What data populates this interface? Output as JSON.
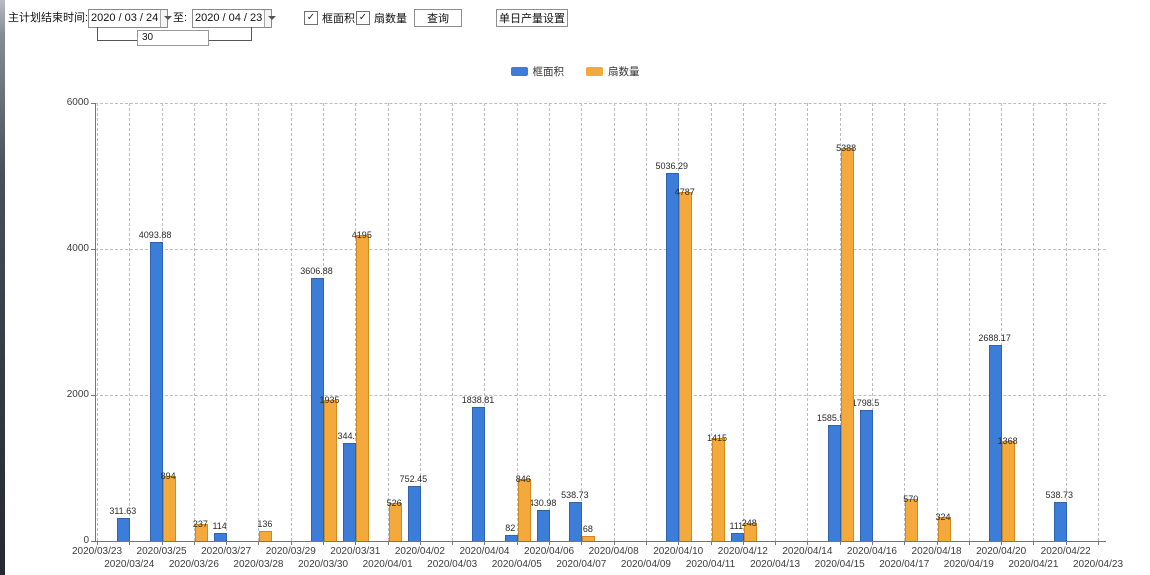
{
  "toolbar": {
    "label_plan_end": "主计划结束时间:",
    "date_from": "2020 / 03 / 24",
    "to_label": "至:",
    "date_to": "2020 / 04 / 23",
    "interval_days": "30",
    "checkbox_frame_area": "框面积",
    "checkbox_sash_count": "扇数量",
    "checkbox_frame_area_checked": "✓",
    "checkbox_sash_count_checked": "✓",
    "query_button": "查询",
    "daily_output_button": "单日产量设置"
  },
  "legend": [
    {
      "label": "框面积",
      "color": "#3c7dda"
    },
    {
      "label": "扇数量",
      "color": "#f4a93d"
    }
  ],
  "chart_data": {
    "type": "bar",
    "title": "",
    "xlabel": "",
    "ylabel": "",
    "ylim": [
      0,
      6000
    ],
    "yticks": [
      0,
      2000,
      4000,
      6000
    ],
    "grid": true,
    "legend_position": "top",
    "categories": [
      "2020/03/23",
      "2020/03/24",
      "2020/03/25",
      "2020/03/26",
      "2020/03/27",
      "2020/03/28",
      "2020/03/29",
      "2020/03/30",
      "2020/03/31",
      "2020/04/01",
      "2020/04/02",
      "2020/04/03",
      "2020/04/04",
      "2020/04/05",
      "2020/04/06",
      "2020/04/07",
      "2020/04/08",
      "2020/04/09",
      "2020/04/10",
      "2020/04/11",
      "2020/04/12",
      "2020/04/13",
      "2020/04/14",
      "2020/04/15",
      "2020/04/16",
      "2020/04/17",
      "2020/04/18",
      "2020/04/19",
      "2020/04/20",
      "2020/04/21",
      "2020/04/22",
      "2020/04/23"
    ],
    "series": [
      {
        "name": "框面积",
        "color": "#3c7dda",
        "values": [
          null,
          311.63,
          4093.88,
          null,
          114,
          null,
          null,
          3606.88,
          1344.95,
          null,
          752.45,
          null,
          1838.81,
          82,
          430.98,
          538.73,
          null,
          null,
          5036.29,
          null,
          111,
          null,
          null,
          1585.96,
          1798.5,
          null,
          null,
          null,
          2688.17,
          null,
          538.73,
          null
        ]
      },
      {
        "name": "扇数量",
        "color": "#f4a93d",
        "values": [
          null,
          null,
          894,
          237,
          null,
          136,
          null,
          1935,
          4195,
          526,
          null,
          null,
          null,
          846,
          null,
          68,
          null,
          null,
          4787,
          1415,
          248,
          null,
          null,
          5388,
          null,
          570,
          324,
          null,
          1368,
          null,
          null,
          null
        ]
      }
    ]
  }
}
